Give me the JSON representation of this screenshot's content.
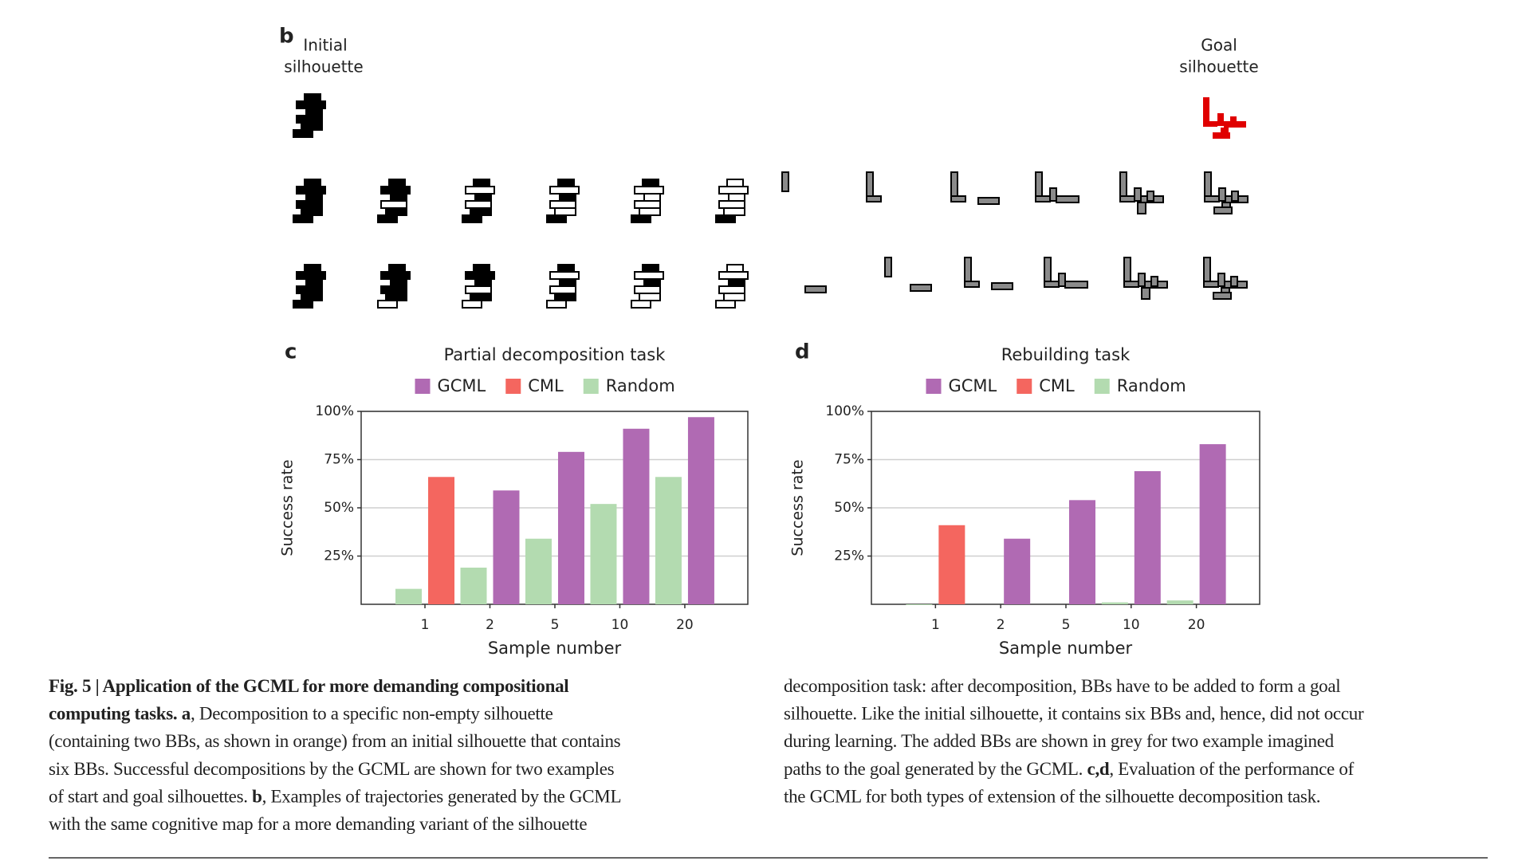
{
  "panel_b": {
    "label": "b",
    "initial_label": [
      "Initial",
      "silhouette"
    ],
    "goal_label": [
      "Goal",
      "silhouette"
    ]
  },
  "chart_data": [
    {
      "type": "bar",
      "panel_label": "c",
      "title": "Partial decomposition task",
      "y_label": "Success rate",
      "x_label": "Sample number",
      "categories": [
        "1",
        "2",
        "5",
        "10",
        "20"
      ],
      "series": [
        {
          "name": "GCML",
          "color": "#b06ab3",
          "values": [
            null,
            59,
            79,
            91,
            97
          ]
        },
        {
          "name": "CML",
          "color": "#f4665f",
          "values": [
            66,
            null,
            null,
            null,
            null
          ]
        },
        {
          "name": "Random",
          "color": "#b3dbb0",
          "values": [
            8,
            19,
            34,
            52,
            66
          ]
        }
      ],
      "ylim": [
        0,
        100
      ],
      "yticks": [
        {
          "value": 25,
          "label": "25%"
        },
        {
          "value": 50,
          "label": "50%"
        },
        {
          "value": 75,
          "label": "75%"
        },
        {
          "value": 100,
          "label": "100%"
        }
      ],
      "grid": true
    },
    {
      "type": "bar",
      "panel_label": "d",
      "title": "Rebuilding task",
      "y_label": "Success rate",
      "x_label": "Sample number",
      "categories": [
        "1",
        "2",
        "5",
        "10",
        "20"
      ],
      "series": [
        {
          "name": "GCML",
          "color": "#b06ab3",
          "values": [
            null,
            34,
            54,
            69,
            83
          ]
        },
        {
          "name": "CML",
          "color": "#f4665f",
          "values": [
            41,
            null,
            null,
            null,
            null
          ]
        },
        {
          "name": "Random",
          "color": "#b3dbb0",
          "values": [
            0,
            null,
            null,
            1,
            2
          ]
        }
      ],
      "ylim": [
        0,
        100
      ],
      "yticks": [
        {
          "value": 25,
          "label": "25%"
        },
        {
          "value": 50,
          "label": "50%"
        },
        {
          "value": 75,
          "label": "75%"
        },
        {
          "value": 100,
          "label": "100%"
        }
      ],
      "grid": true
    }
  ],
  "caption": {
    "left": [
      [
        {
          "text": "Fig. 5 | Application of the GCML for more demanding compositional",
          "bold": true
        }
      ],
      [
        {
          "text": "computing tasks. a",
          "bold": true
        },
        {
          "text": ", Decomposition to a specific non-empty silhouette"
        }
      ],
      [
        {
          "text": "(containing two BBs, as shown in orange) from an initial silhouette that contains"
        }
      ],
      [
        {
          "text": "six BBs. Successful decompositions by the GCML are shown for two examples"
        }
      ],
      [
        {
          "text": "of start and goal silhouettes. "
        },
        {
          "text": "b",
          "bold": true
        },
        {
          "text": ", Examples of trajectories generated by the GCML"
        }
      ],
      [
        {
          "text": "with the same cognitive map for a more demanding variant of the silhouette"
        }
      ]
    ],
    "right": [
      [
        {
          "text": "decomposition task: after decomposition, BBs have to be added to form a goal"
        }
      ],
      [
        {
          "text": "silhouette. Like the initial silhouette, it contains six BBs and, hence, did not occur"
        }
      ],
      [
        {
          "text": "during learning. The added BBs are shown in grey for two example imagined"
        }
      ],
      [
        {
          "text": "paths to the goal generated by the GCML. "
        },
        {
          "text": "c,d",
          "bold": true
        },
        {
          "text": ", Evaluation of the performance of"
        }
      ],
      [
        {
          "text": "the GCML for both types of extension of the silhouette decomposition task."
        }
      ]
    ]
  }
}
